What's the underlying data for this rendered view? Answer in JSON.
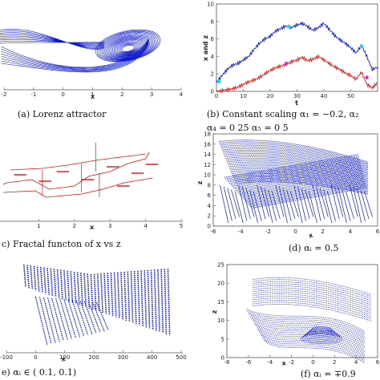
{
  "colors": {
    "blue": "#0a18c8",
    "red": "#e21010",
    "cyan": "#13e3f0",
    "magenta": "#e51ee5",
    "frame": "#555555"
  },
  "chart_data": [
    {
      "type": "line",
      "id": "a",
      "caption": "(a) Lorenz attractor",
      "xlabel": "x",
      "ylabel": "",
      "xlim": [
        -2,
        4
      ],
      "xticks": [
        -2,
        -1,
        0,
        1,
        2,
        3,
        4
      ],
      "grid": false,
      "series": [
        {
          "color": "#0a18c8",
          "shape": "double-lobe attractor (x, z projection)"
        }
      ]
    },
    {
      "type": "line",
      "id": "b",
      "caption_line1": "(b)  Constant scaling  α₁ = −0.2,  α₂",
      "caption_line2": "α₄ = 0 25   α₅ = 0 5",
      "xlabel": "t",
      "ylabel": "x and z",
      "xlim": [
        0,
        60
      ],
      "ylim": [
        0,
        10
      ],
      "xticks": [
        0,
        10,
        20,
        30,
        40,
        50
      ],
      "yticks": [
        0,
        2,
        4,
        6,
        8,
        10
      ],
      "x": [
        0,
        2,
        4,
        6,
        8,
        10,
        12,
        14,
        16,
        18,
        20,
        22,
        24,
        26,
        28,
        30,
        32,
        34,
        36,
        38,
        40,
        42,
        44,
        46,
        48,
        50,
        52,
        54,
        56,
        58,
        60
      ],
      "series": [
        {
          "color": "#0a18c8",
          "values": [
            1.0,
            1.8,
            2.5,
            3.0,
            3.2,
            3.6,
            4.0,
            4.8,
            5.5,
            6.0,
            6.3,
            6.9,
            7.2,
            7.5,
            7.3,
            7.6,
            7.8,
            7.4,
            7.0,
            7.3,
            7.8,
            7.1,
            6.4,
            5.9,
            5.5,
            5.0,
            4.4,
            5.3,
            4.0,
            2.5,
            2.8
          ]
        },
        {
          "color": "#e21010",
          "values": [
            0.0,
            0.1,
            0.2,
            0.3,
            0.5,
            0.8,
            1.1,
            1.3,
            1.6,
            2.0,
            2.4,
            2.7,
            2.9,
            3.1,
            3.4,
            3.6,
            3.9,
            3.5,
            3.7,
            4.0,
            3.6,
            3.2,
            2.8,
            2.5,
            2.1,
            1.8,
            1.4,
            2.2,
            0.8,
            0.4,
            1.0
          ]
        }
      ],
      "markers": [
        {
          "x": 1,
          "y": 1.1,
          "color": "#13e3f0"
        },
        {
          "x": 27,
          "y": 7.4,
          "color": "#13e3f0"
        },
        {
          "x": 54,
          "y": 5.2,
          "color": "#13e3f0"
        },
        {
          "x": 26,
          "y": 3.2,
          "color": "#e51ee5"
        },
        {
          "x": 56,
          "y": 1.6,
          "color": "#e51ee5"
        }
      ]
    },
    {
      "type": "line",
      "id": "c",
      "caption": "c)  Fractal functon of x vs z",
      "xlabel": "x",
      "ylabel": "",
      "xlim": [
        0,
        5
      ],
      "xticks": [
        1,
        2,
        3,
        4,
        5
      ],
      "grid": false,
      "series": [
        {
          "color": "#e21010",
          "shape": "stepped fractal interpolation"
        }
      ]
    },
    {
      "type": "scatter",
      "id": "d",
      "caption": "(d)  αᵢ = 0.5",
      "xlabel": "x",
      "ylabel": "z",
      "xlim": [
        -6,
        6
      ],
      "ylim": [
        0,
        18
      ],
      "xticks": [
        -6,
        -4,
        -2,
        0,
        2,
        4,
        6
      ],
      "yticks": [
        0,
        2,
        4,
        6,
        8,
        10,
        12,
        14,
        16,
        18
      ],
      "series": [
        {
          "color": "#0a18c8",
          "shape": "dense wing-shaped point cloud"
        }
      ]
    },
    {
      "type": "scatter",
      "id": "e",
      "caption": "e)  αᵢ ∈ (  0.1, 0.1)",
      "xlabel": "x",
      "ylabel": "",
      "xlim": [
        -100,
        500
      ],
      "xticks": [
        -100,
        0,
        100,
        200,
        300,
        400,
        500
      ],
      "series": [
        {
          "color": "#0a18c8",
          "shape": "fan of streaks"
        }
      ]
    },
    {
      "type": "scatter",
      "id": "f",
      "caption": "(f)  αᵢ = ∓0.9",
      "xlabel": "x",
      "ylabel": "z",
      "xlim": [
        -8,
        6
      ],
      "ylim": [
        0,
        25
      ],
      "xticks": [
        -8,
        -6,
        -4,
        -2,
        0,
        2,
        4,
        6
      ],
      "yticks": [
        0,
        5,
        10,
        15,
        20,
        25
      ],
      "series": [
        {
          "color": "#0a18c8",
          "shape": "layered wing point cloud"
        }
      ]
    }
  ]
}
